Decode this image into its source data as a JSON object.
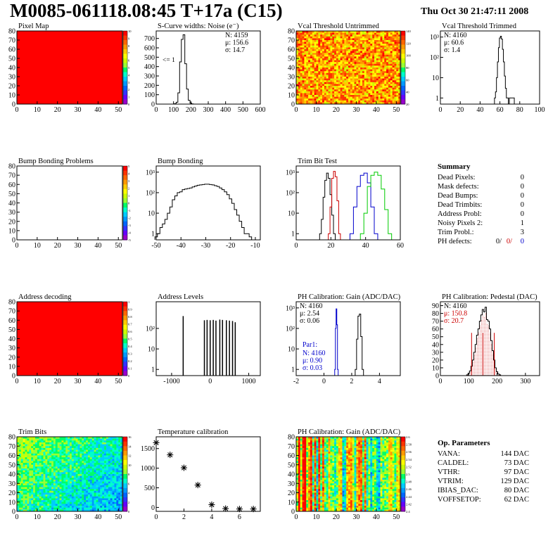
{
  "header": {
    "title": "M0085-061118.08:45 T+17a (C15)",
    "date": "Thu Oct 30 21:47:11 2008"
  },
  "colors": {
    "red_fill": "#ff0000",
    "hist_line": "#000000",
    "blue": "#0000cc",
    "red": "#cc0000",
    "green": "#00cc00",
    "palette": [
      "#ff0000",
      "#ff3300",
      "#ff6600",
      "#ff9900",
      "#ffcc00",
      "#ffff00",
      "#ccff00",
      "#99ff33",
      "#00ff66",
      "#00ffcc",
      "#00ccff",
      "#0099ff",
      "#0066ff",
      "#3333ff",
      "#6600ff",
      "#9900cc"
    ]
  },
  "chart_data": [
    {
      "id": "pixel-map",
      "type": "heatmap",
      "title": "Pixel Map",
      "xlim": [
        0,
        52
      ],
      "ylim": [
        0,
        80
      ],
      "x_ticks": [
        0,
        10,
        20,
        30,
        40,
        50
      ],
      "y_ticks": [
        0,
        10,
        20,
        30,
        40,
        50,
        60,
        70,
        80
      ],
      "fill": "uniform",
      "value": 10,
      "z_ticks": [
        "10",
        "9",
        "8",
        "7",
        "6",
        "5",
        "4",
        "3",
        "2",
        "1",
        "0"
      ]
    },
    {
      "id": "scurve-widths",
      "type": "bar",
      "title": "S-Curve widths: Noise (e⁻)",
      "xlim": [
        0,
        600
      ],
      "ylim": [
        0,
        780
      ],
      "x_ticks": [
        0,
        100,
        200,
        300,
        400,
        500,
        600
      ],
      "y_ticks": [
        0,
        100,
        200,
        300,
        400,
        500,
        600,
        700
      ],
      "stats": [
        "N: 4159",
        "μ: 156.6",
        "σ: 14.7"
      ],
      "annotation": "<= 1",
      "x": [
        100,
        110,
        120,
        130,
        140,
        150,
        160,
        170,
        180,
        190,
        200,
        210,
        220
      ],
      "values": [
        0,
        5,
        20,
        120,
        450,
        690,
        740,
        430,
        160,
        40,
        10,
        2,
        0
      ]
    },
    {
      "id": "vcal-untrimmed",
      "type": "heatmap",
      "title": "Vcal Threshold Untrimmed",
      "xlim": [
        0,
        52
      ],
      "ylim": [
        0,
        80
      ],
      "x_ticks": [
        0,
        10,
        20,
        30,
        40,
        50
      ],
      "y_ticks": [
        0,
        10,
        20,
        30,
        40,
        50,
        60,
        70,
        80
      ],
      "fill": "noise",
      "z_ticks": [
        "140",
        "120",
        "100",
        "80",
        "60",
        "40",
        "20"
      ]
    },
    {
      "id": "vcal-trimmed",
      "type": "bar",
      "title": "Vcal Threshold Trimmed",
      "log_y": true,
      "xlim": [
        0,
        100
      ],
      "ylim": [
        0.5,
        2000
      ],
      "x_ticks": [
        0,
        20,
        40,
        60,
        80,
        100
      ],
      "y_ticks": [
        1,
        10,
        100,
        1000
      ],
      "y_tick_labels": [
        "1",
        "10",
        "10²",
        "10³"
      ],
      "stats": [
        "N: 4160",
        "μ: 60.6",
        "σ: 1.4"
      ],
      "x": [
        55,
        56,
        57,
        58,
        59,
        60,
        61,
        62,
        63,
        64,
        65,
        66,
        67,
        68,
        69,
        70,
        71,
        72,
        73,
        74,
        75
      ],
      "values": [
        1,
        2,
        10,
        60,
        300,
        900,
        1100,
        800,
        250,
        60,
        12,
        3,
        1,
        1,
        0,
        1,
        1,
        1,
        1,
        1,
        0
      ]
    },
    {
      "id": "bump-problems",
      "type": "heatmap",
      "title": "Bump Bonding Problems",
      "xlim": [
        0,
        52
      ],
      "ylim": [
        0,
        80
      ],
      "x_ticks": [
        0,
        10,
        20,
        30,
        40,
        50
      ],
      "y_ticks": [
        0,
        10,
        20,
        30,
        40,
        50,
        60,
        70,
        80
      ],
      "fill": "empty",
      "z_ticks": [
        "5",
        "4",
        "3",
        "2",
        "1",
        "0",
        "-1",
        "-2",
        "-3",
        "-4",
        "-5"
      ]
    },
    {
      "id": "bump-bonding",
      "type": "bar",
      "title": "Bump Bonding",
      "log_y": true,
      "xlim": [
        -50,
        -8
      ],
      "ylim": [
        0.5,
        2000
      ],
      "x_ticks": [
        -50,
        -40,
        -30,
        -20,
        -10
      ],
      "y_ticks": [
        1,
        10,
        100,
        1000
      ],
      "y_tick_labels": [
        "1",
        "10",
        "10²",
        "10³"
      ],
      "x": [
        -50,
        -49,
        -48,
        -47,
        -46,
        -45,
        -44,
        -43,
        -42,
        -41,
        -40,
        -39,
        -38,
        -37,
        -36,
        -35,
        -34,
        -33,
        -32,
        -31,
        -30,
        -29,
        -28,
        -27,
        -26,
        -25,
        -24,
        -23,
        -22,
        -21,
        -20,
        -19,
        -18,
        -17,
        -16,
        -15,
        -14,
        -13,
        -12
      ],
      "values": [
        0.7,
        1,
        2,
        3,
        5,
        10,
        20,
        45,
        70,
        100,
        110,
        140,
        150,
        160,
        170,
        190,
        210,
        230,
        240,
        250,
        260,
        260,
        250,
        240,
        220,
        200,
        170,
        140,
        110,
        80,
        50,
        30,
        15,
        8,
        4,
        2,
        1,
        1,
        0.7
      ]
    },
    {
      "id": "trim-bit-test",
      "type": "line",
      "title": "Trim Bit Test",
      "log_y": true,
      "xlim": [
        0,
        60
      ],
      "ylim": [
        0.5,
        2000
      ],
      "x_ticks": [
        0,
        20,
        40,
        60
      ],
      "y_ticks": [
        1,
        10,
        100,
        1000
      ],
      "y_tick_labels": [
        "1",
        "10",
        "10²",
        "10³"
      ],
      "series": [
        {
          "color": "#000000",
          "x": [
            14,
            15,
            16,
            17,
            18,
            19,
            20,
            21,
            22
          ],
          "values": [
            1,
            5,
            60,
            400,
            900,
            500,
            80,
            8,
            1
          ]
        },
        {
          "color": "#cc0000",
          "x": [
            19,
            20,
            21,
            22,
            23,
            24,
            25
          ],
          "values": [
            1,
            20,
            500,
            1100,
            600,
            40,
            1
          ]
        },
        {
          "color": "#0000cc",
          "x": [
            32,
            34,
            36,
            38,
            40,
            42,
            44,
            46
          ],
          "values": [
            1,
            20,
            200,
            700,
            900,
            300,
            20,
            1
          ]
        },
        {
          "color": "#00cc00",
          "x": [
            38,
            40,
            42,
            44,
            46,
            48,
            50,
            52,
            54
          ],
          "values": [
            1,
            10,
            200,
            700,
            1000,
            700,
            150,
            15,
            1
          ]
        }
      ]
    },
    {
      "id": "summary",
      "type": "table",
      "title": "Summary",
      "rows": [
        {
          "label": "Dead Pixels:",
          "value": "0"
        },
        {
          "label": "Mask defects:",
          "value": "0"
        },
        {
          "label": "Dead Bumps:",
          "value": "0"
        },
        {
          "label": "Dead Trimbits:",
          "value": "0"
        },
        {
          "label": "Address Probl:",
          "value": "0"
        },
        {
          "label": "Noisy Pixels 2:",
          "value": "1"
        },
        {
          "label": "Trim Probl.:",
          "value": "3"
        }
      ],
      "ph_defects": {
        "label": "PH defects:",
        "values": [
          "0/",
          "0/",
          "0"
        ],
        "colors": [
          "#000000",
          "#cc0000",
          "#0000cc"
        ]
      }
    },
    {
      "id": "address-decoding",
      "type": "heatmap",
      "title": "Address decoding",
      "xlim": [
        0,
        52
      ],
      "ylim": [
        0,
        80
      ],
      "x_ticks": [
        0,
        10,
        20,
        30,
        40,
        50
      ],
      "y_ticks": [
        0,
        10,
        20,
        30,
        40,
        50,
        60,
        70,
        80
      ],
      "fill": "uniform",
      "value": 1,
      "z_ticks": [
        "1",
        "0.9",
        "0.8",
        "0.7",
        "0.6",
        "0.5",
        "0.4",
        "0.3",
        "0.2",
        "0.1",
        "0"
      ]
    },
    {
      "id": "address-levels",
      "type": "bar",
      "title": "Address Levels",
      "log_y": true,
      "xlim": [
        -1400,
        1300
      ],
      "ylim": [
        0.5,
        2000
      ],
      "x_ticks": [
        -1000,
        0,
        1000
      ],
      "y_ticks": [
        1,
        10,
        100
      ],
      "y_tick_labels": [
        "1",
        "10",
        "10²"
      ],
      "spikes": [
        {
          "x": -700,
          "value": 400
        },
        {
          "x": -150,
          "value": 250
        },
        {
          "x": -80,
          "value": 260
        },
        {
          "x": 0,
          "value": 250
        },
        {
          "x": 80,
          "value": 260
        },
        {
          "x": 150,
          "value": 240
        },
        {
          "x": 250,
          "value": 270
        },
        {
          "x": 320,
          "value": 260
        },
        {
          "x": 420,
          "value": 250
        },
        {
          "x": 500,
          "value": 240
        },
        {
          "x": 580,
          "value": 230
        },
        {
          "x": 650,
          "value": 200
        }
      ]
    },
    {
      "id": "ph-gain",
      "type": "bar",
      "title": "PH Calibration: Gain (ADC/DAC)",
      "log_y": true,
      "xlim": [
        -2,
        5.5
      ],
      "ylim": [
        0.5,
        2000
      ],
      "x_ticks": [
        -2,
        0,
        2,
        4
      ],
      "y_ticks": [
        1,
        10,
        100,
        1000
      ],
      "y_tick_labels": [
        "1",
        "10",
        "10²",
        "10³"
      ],
      "stats": [
        "N: 4160",
        "μ: 2.54",
        "σ: 0.06"
      ],
      "par1_label": "Par1:",
      "par1_stats": [
        "N: 4160",
        "μ: 0.90",
        "σ: 0.03"
      ],
      "series": [
        {
          "color": "#000000",
          "x": [
            2.3,
            2.4,
            2.5,
            2.6,
            2.7,
            2.8
          ],
          "values": [
            1,
            30,
            400,
            500,
            40,
            1
          ]
        },
        {
          "color": "#0000cc",
          "x": [
            0.8,
            0.85,
            0.9,
            0.95,
            1.0
          ],
          "values": [
            1,
            100,
            900,
            150,
            1
          ]
        }
      ]
    },
    {
      "id": "ph-pedestal",
      "type": "bar",
      "title": "PH Calibration: Pedestal (DAC)",
      "xlim": [
        0,
        350
      ],
      "ylim": [
        0,
        95
      ],
      "x_ticks": [
        0,
        100,
        200,
        300
      ],
      "y_ticks": [
        0,
        10,
        20,
        30,
        40,
        50,
        60,
        70,
        80,
        90
      ],
      "stats": [
        "N: 4160",
        "μ: 150.8",
        "σ: 20.7"
      ],
      "x": [
        95,
        100,
        105,
        110,
        115,
        120,
        125,
        130,
        135,
        140,
        145,
        150,
        155,
        160,
        165,
        170,
        175,
        180,
        185,
        190,
        195,
        200,
        205,
        210
      ],
      "values": [
        1,
        3,
        6,
        12,
        20,
        30,
        40,
        52,
        60,
        70,
        78,
        85,
        82,
        88,
        72,
        70,
        60,
        45,
        32,
        20,
        10,
        5,
        2,
        1
      ],
      "marker_lines": [
        110,
        150,
        190
      ]
    },
    {
      "id": "trim-bits",
      "type": "heatmap",
      "title": "Trim Bits",
      "xlim": [
        0,
        52
      ],
      "ylim": [
        0,
        80
      ],
      "x_ticks": [
        0,
        10,
        20,
        30,
        40,
        50
      ],
      "y_ticks": [
        0,
        10,
        20,
        30,
        40,
        50,
        60,
        70,
        80
      ],
      "fill": "gradient",
      "z_ticks": [
        "16",
        "14",
        "12",
        "10",
        "8",
        "6",
        "4",
        "2",
        "0"
      ]
    },
    {
      "id": "temperature-calibration",
      "type": "scatter",
      "title": "Temperature calibration",
      "xlim": [
        0,
        7.5
      ],
      "ylim": [
        -100,
        1800
      ],
      "x_ticks": [
        0,
        2,
        4,
        6
      ],
      "y_ticks": [
        0,
        500,
        1000,
        1500
      ],
      "x": [
        0,
        1,
        2,
        3,
        4,
        5,
        6,
        7
      ],
      "values": [
        1650,
        1340,
        1010,
        570,
        70,
        -30,
        -40,
        -40
      ]
    },
    {
      "id": "ph-gain-map",
      "type": "heatmap",
      "title": "PH Calibration: Gain (ADC/DAC)",
      "xlim": [
        0,
        52
      ],
      "ylim": [
        0,
        80
      ],
      "x_ticks": [
        0,
        10,
        20,
        30,
        40,
        50
      ],
      "y_ticks": [
        0,
        10,
        20,
        30,
        40,
        50,
        60,
        70,
        80
      ],
      "fill": "stripes",
      "z_ticks": [
        "2.6",
        "2.58",
        "2.56",
        "2.54",
        "2.52",
        "2.5",
        "2.48",
        "2.46",
        "2.44",
        "2.42",
        "2.4"
      ]
    },
    {
      "id": "op-parameters",
      "type": "table",
      "title": "Op. Parameters",
      "rows": [
        {
          "label": "VANA:",
          "value": "144 DAC"
        },
        {
          "label": "CALDEL:",
          "value": "73 DAC"
        },
        {
          "label": "VTHR:",
          "value": "97 DAC"
        },
        {
          "label": "VTRIM:",
          "value": "129 DAC"
        },
        {
          "label": "IBIAS_DAC:",
          "value": "80 DAC"
        },
        {
          "label": "VOFFSETOP:",
          "value": "62 DAC"
        }
      ]
    }
  ]
}
